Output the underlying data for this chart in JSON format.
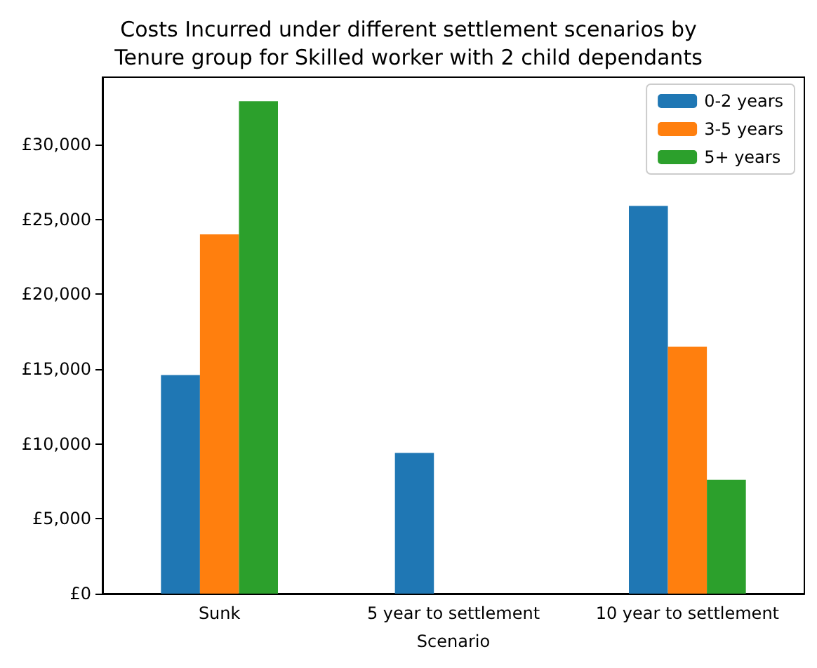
{
  "chart_data": {
    "type": "bar",
    "title": "Costs Incurred under different settlement scenarios by\nTenure group for Skilled worker with 2 child dependants",
    "xlabel": "Scenario",
    "categories": [
      "Sunk",
      "5 year to settlement",
      "10 year to settlement"
    ],
    "series": [
      {
        "name": "0-2 years",
        "color": "#1f77b4",
        "values": [
          14600,
          9400,
          25900
        ]
      },
      {
        "name": "3-5 years",
        "color": "#ff7f0e",
        "values": [
          24000,
          0,
          16500
        ]
      },
      {
        "name": "5+ years",
        "color": "#2ca02c",
        "values": [
          32900,
          0,
          7600
        ]
      }
    ],
    "ylim": [
      0,
      34500
    ],
    "yticks": [
      {
        "value": 0,
        "label": "£0"
      },
      {
        "value": 5000,
        "label": "£5,000"
      },
      {
        "value": 10000,
        "label": "£10,000"
      },
      {
        "value": 15000,
        "label": "£15,000"
      },
      {
        "value": 20000,
        "label": "£20,000"
      },
      {
        "value": 25000,
        "label": "£25,000"
      },
      {
        "value": 30000,
        "label": "£30,000"
      }
    ],
    "grid": false,
    "legend": "top right"
  }
}
